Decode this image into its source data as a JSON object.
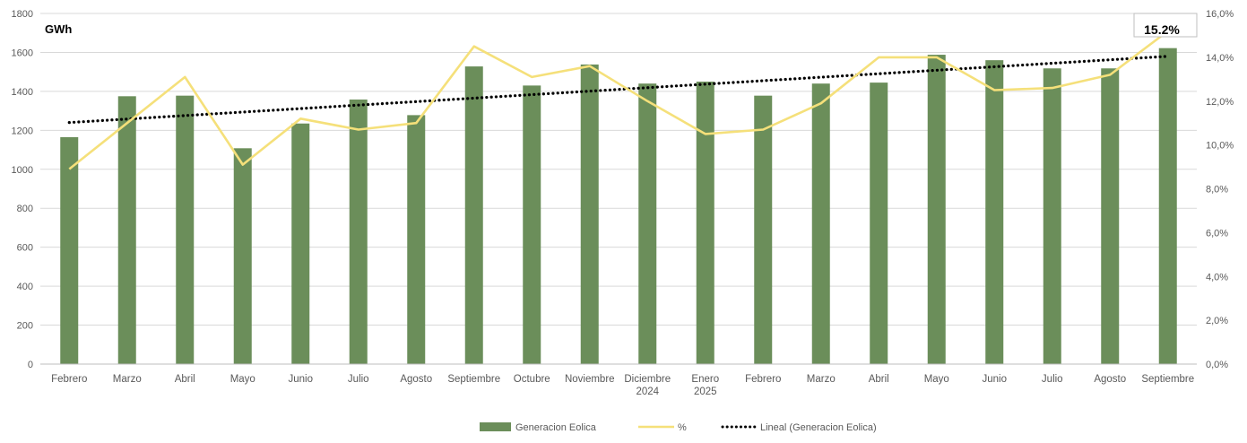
{
  "chart_data": {
    "type": "bar",
    "unit_label": "GWh",
    "categories": [
      [
        "Febrero"
      ],
      [
        "Marzo"
      ],
      [
        "Abril"
      ],
      [
        "Mayo"
      ],
      [
        "Junio"
      ],
      [
        "Julio"
      ],
      [
        "Agosto"
      ],
      [
        "Septiembre"
      ],
      [
        "Octubre"
      ],
      [
        "Noviembre"
      ],
      [
        "Diciembre",
        "2024"
      ],
      [
        "Enero",
        "2025"
      ],
      [
        "Febrero"
      ],
      [
        "Marzo"
      ],
      [
        "Abril"
      ],
      [
        "Mayo"
      ],
      [
        "Junio"
      ],
      [
        "Julio"
      ],
      [
        "Agosto"
      ],
      [
        "Septiembre"
      ]
    ],
    "y_left": {
      "ylim": [
        0,
        1800
      ],
      "ticks": [
        0,
        200,
        400,
        600,
        800,
        1000,
        1200,
        1400,
        1600,
        1800
      ],
      "tick_labels": [
        "0",
        "200",
        "400",
        "600",
        "800",
        "1000",
        "1200",
        "1400",
        "1600",
        "1800"
      ]
    },
    "y_right": {
      "ylim": [
        0,
        16
      ],
      "ticks": [
        0,
        2,
        4,
        6,
        8,
        10,
        12,
        14,
        16
      ],
      "tick_labels": [
        "0,0%",
        "2,0%",
        "4,0%",
        "6,0%",
        "8,0%",
        "10,0%",
        "12,0%",
        "14,0%",
        "16,0%"
      ]
    },
    "series": [
      {
        "name": "Generacion Eolica",
        "type": "bar",
        "axis": "left",
        "color": "#6b8e5a",
        "values": [
          1165,
          1375,
          1378,
          1108,
          1235,
          1358,
          1278,
          1528,
          1430,
          1538,
          1440,
          1450,
          1378,
          1440,
          1445,
          1588,
          1560,
          1518,
          1518,
          1622
        ]
      },
      {
        "name": "%",
        "type": "line",
        "axis": "right",
        "color": "#f5e07a",
        "values": [
          8.9,
          11.0,
          13.1,
          9.1,
          11.2,
          10.7,
          11.0,
          14.5,
          13.1,
          13.6,
          12.0,
          10.5,
          10.7,
          11.9,
          14.0,
          14.0,
          12.5,
          12.6,
          13.2,
          15.2
        ]
      },
      {
        "name": "Lineal (Generacion Eolica)",
        "type": "trendline",
        "axis": "left",
        "color": "#000000",
        "start_value": 1240,
        "end_value": 1580
      }
    ],
    "annotation": "15.2%",
    "legend_position": "bottom",
    "grid": true
  }
}
